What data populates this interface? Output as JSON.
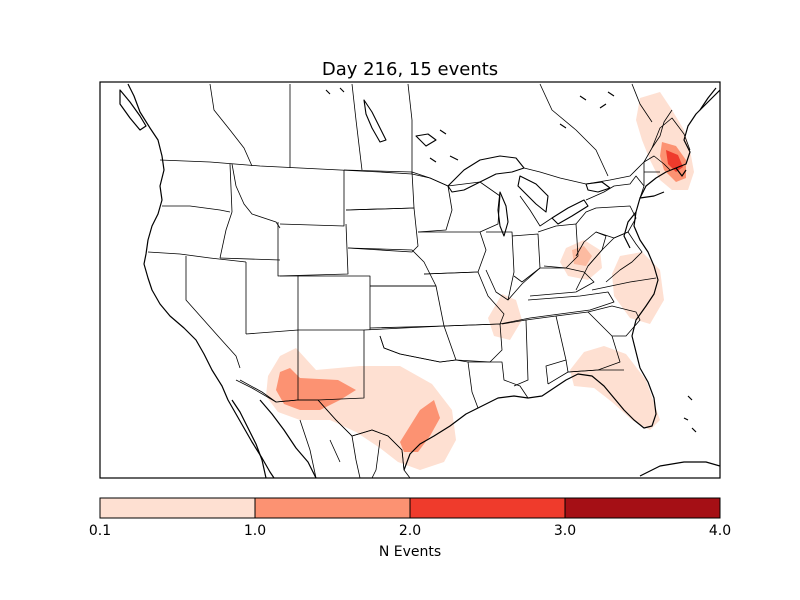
{
  "title": "Day 216, 15 events",
  "colorbar": {
    "label": "N Events",
    "ticks": [
      "0.1",
      "1.0",
      "2.0",
      "3.0",
      "4.0"
    ],
    "colors": [
      "#fee0d2",
      "#fc9272",
      "#ef3b2c",
      "#a50f15"
    ]
  },
  "map": {
    "land_color": "#ffffff",
    "line_color": "#000000"
  }
}
